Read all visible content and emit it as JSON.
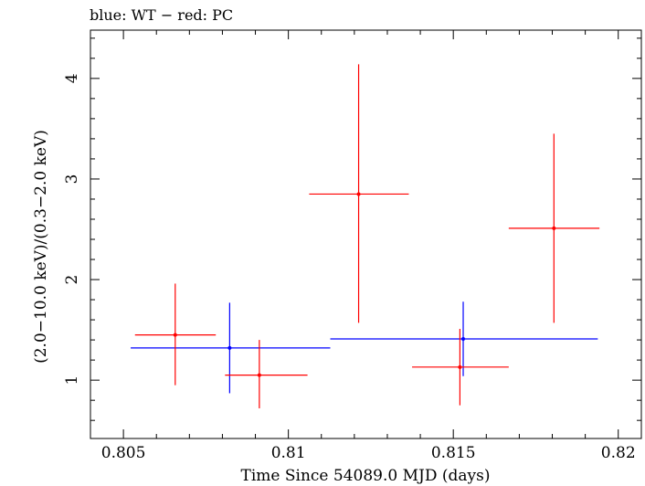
{
  "chart_data": {
    "type": "scatter",
    "title": "blue: WT − red: PC",
    "xlabel": "Time Since 54089.0 MJD (days)",
    "ylabel": "(2.0−10.0 keV)/(0.3−2.0 keV)",
    "xlim": [
      0.804,
      0.8207
    ],
    "ylim": [
      0.42,
      4.48
    ],
    "xticks": [
      0.805,
      0.81,
      0.815,
      0.82
    ],
    "xtick_labels": [
      "0.805",
      "0.81",
      "0.815",
      "0.82"
    ],
    "yticks": [
      1,
      2,
      3,
      4
    ],
    "ytick_labels": [
      "1",
      "2",
      "3",
      "4"
    ],
    "grid": false,
    "series": [
      {
        "color": "#0000ff",
        "points": [
          {
            "x": 0.80822,
            "xlo": 0.80522,
            "xhi": 0.81127,
            "y": 1.32,
            "ylo": 0.87,
            "yhi": 1.77
          },
          {
            "x": 0.8153,
            "xlo": 0.81127,
            "xhi": 0.81938,
            "y": 1.41,
            "ylo": 1.04,
            "yhi": 1.78
          }
        ]
      },
      {
        "color": "#ff0000",
        "points": [
          {
            "x": 0.80657,
            "xlo": 0.80535,
            "xhi": 0.8078,
            "y": 1.45,
            "ylo": 0.95,
            "yhi": 1.96
          },
          {
            "x": 0.80912,
            "xlo": 0.80808,
            "xhi": 0.81058,
            "y": 1.05,
            "ylo": 0.72,
            "yhi": 1.4
          },
          {
            "x": 0.81213,
            "xlo": 0.81063,
            "xhi": 0.81365,
            "y": 2.85,
            "ylo": 1.57,
            "yhi": 4.14
          },
          {
            "x": 0.8152,
            "xlo": 0.81375,
            "xhi": 0.81668,
            "y": 1.13,
            "ylo": 0.75,
            "yhi": 1.51
          },
          {
            "x": 0.81805,
            "xlo": 0.81668,
            "xhi": 0.81943,
            "y": 2.51,
            "ylo": 1.57,
            "yhi": 3.45
          }
        ]
      }
    ]
  }
}
